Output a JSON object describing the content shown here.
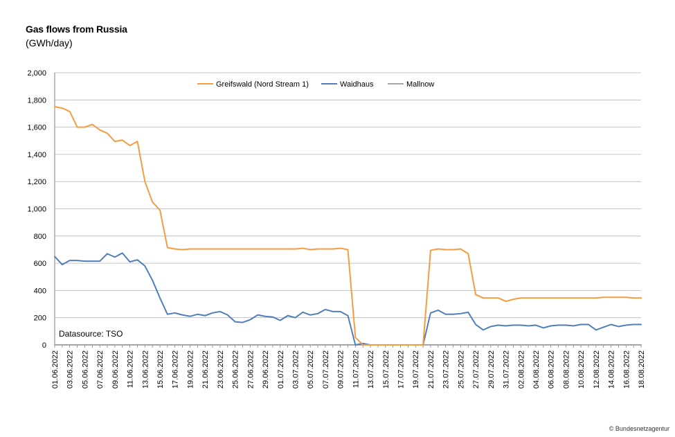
{
  "header": {
    "title": "Gas flows from Russia",
    "subtitle": "(GWh/day)"
  },
  "annotation": "Datasource: TSO",
  "credit": "© Bundesnetzagentur",
  "chart_data": {
    "type": "line",
    "ylim": [
      0,
      2000
    ],
    "yticks": [
      0,
      200,
      400,
      600,
      800,
      1000,
      1200,
      1400,
      1600,
      1800,
      2000
    ],
    "ytick_labels": [
      "0",
      "200",
      "400",
      "600",
      "800",
      "1,000",
      "1,200",
      "1,400",
      "1,600",
      "1,800",
      "2,000"
    ],
    "grid": "horizontal",
    "legend_position": "top-center",
    "x": [
      "01.06.2022",
      "02.06.2022",
      "03.06.2022",
      "04.06.2022",
      "05.06.2022",
      "06.06.2022",
      "07.06.2022",
      "08.06.2022",
      "09.06.2022",
      "10.06.2022",
      "11.06.2022",
      "12.06.2022",
      "13.06.2022",
      "14.06.2022",
      "15.06.2022",
      "16.06.2022",
      "17.06.2022",
      "18.06.2022",
      "19.06.2022",
      "20.06.2022",
      "21.06.2022",
      "22.06.2022",
      "23.06.2022",
      "24.06.2022",
      "25.06.2022",
      "26.06.2022",
      "27.06.2022",
      "28.06.2022",
      "29.06.2022",
      "30.06.2022",
      "01.07.2022",
      "02.07.2022",
      "03.07.2022",
      "04.07.2022",
      "05.07.2022",
      "06.07.2022",
      "07.07.2022",
      "08.07.2022",
      "09.07.2022",
      "10.07.2022",
      "11.07.2022",
      "12.07.2022",
      "13.07.2022",
      "14.07.2022",
      "15.07.2022",
      "16.07.2022",
      "17.07.2022",
      "18.07.2022",
      "19.07.2022",
      "20.07.2022",
      "21.07.2022",
      "22.07.2022",
      "23.07.2022",
      "24.07.2022",
      "25.07.2022",
      "26.07.2022",
      "27.07.2022",
      "28.07.2022",
      "29.07.2022",
      "30.07.2022",
      "31.07.2022",
      "01.08.2022",
      "02.08.2022",
      "03.08.2022",
      "04.08.2022",
      "05.08.2022",
      "06.08.2022",
      "07.08.2022",
      "08.08.2022",
      "09.08.2022",
      "10.08.2022",
      "11.08.2022",
      "12.08.2022",
      "13.08.2022",
      "14.08.2022",
      "15.08.2022",
      "16.08.2022",
      "17.08.2022",
      "18.08.2022"
    ],
    "x_tick_labels": [
      "01.06.2022",
      "03.06.2022",
      "05.06.2022",
      "07.06.2022",
      "09.06.2022",
      "11.06.2022",
      "13.06.2022",
      "15.06.2022",
      "17.06.2022",
      "19.06.2022",
      "21.06.2022",
      "23.06.2022",
      "25.06.2022",
      "27.06.2022",
      "29.06.2022",
      "01.07.2022",
      "03.07.2022",
      "05.07.2022",
      "07.07.2022",
      "09.07.2022",
      "11.07.2022",
      "13.07.2022",
      "15.07.2022",
      "17.07.2022",
      "19.07.2022",
      "21.07.2022",
      "23.07.2022",
      "25.07.2022",
      "27.07.2022",
      "29.07.2022",
      "31.07.2022",
      "02.08.2022",
      "04.08.2022",
      "06.08.2022",
      "08.08.2022",
      "10.08.2022",
      "12.08.2022",
      "14.08.2022",
      "16.08.2022",
      "18.08.2022"
    ],
    "series": [
      {
        "name": "Greifswald (Nord Stream 1)",
        "color": "#F79B3F",
        "values": [
          1750,
          1740,
          1715,
          1600,
          1600,
          1620,
          1580,
          1555,
          1495,
          1505,
          1465,
          1495,
          1200,
          1050,
          990,
          715,
          705,
          700,
          705,
          705,
          705,
          705,
          705,
          705,
          705,
          705,
          705,
          705,
          705,
          705,
          705,
          705,
          705,
          710,
          700,
          705,
          705,
          705,
          710,
          700,
          55,
          0,
          0,
          0,
          0,
          0,
          0,
          0,
          0,
          0,
          695,
          705,
          700,
          700,
          705,
          670,
          370,
          345,
          345,
          345,
          320,
          335,
          345,
          345,
          345,
          345,
          345,
          345,
          345,
          345,
          345,
          345,
          345,
          350,
          350,
          350,
          350,
          345,
          345
        ]
      },
      {
        "name": "Waidhaus",
        "color": "#4F7EBB",
        "values": [
          650,
          590,
          620,
          620,
          615,
          615,
          615,
          670,
          645,
          675,
          610,
          625,
          580,
          475,
          345,
          225,
          235,
          220,
          210,
          225,
          215,
          235,
          245,
          220,
          170,
          165,
          185,
          220,
          210,
          205,
          180,
          215,
          200,
          240,
          220,
          230,
          260,
          245,
          245,
          215,
          0,
          10,
          0,
          0,
          0,
          0,
          0,
          0,
          0,
          0,
          235,
          255,
          225,
          225,
          230,
          240,
          150,
          110,
          135,
          145,
          140,
          145,
          145,
          140,
          145,
          125,
          140,
          145,
          145,
          140,
          150,
          150,
          110,
          130,
          150,
          135,
          145,
          150,
          150
        ]
      },
      {
        "name": "Mallnow",
        "color": "#A5A5A5",
        "values": [
          0,
          0,
          0,
          0,
          0,
          0,
          0,
          0,
          0,
          0,
          0,
          0,
          0,
          0,
          0,
          0,
          0,
          0,
          0,
          0,
          0,
          0,
          0,
          0,
          0,
          0,
          0,
          0,
          0,
          0,
          0,
          0,
          0,
          0,
          0,
          0,
          0,
          0,
          0,
          0,
          0,
          0,
          0,
          0,
          0,
          0,
          0,
          0,
          0,
          0,
          0,
          0,
          0,
          0,
          0,
          0,
          0,
          0,
          0,
          0,
          0,
          0,
          0,
          0,
          0,
          0,
          0,
          0,
          0,
          0,
          0,
          0,
          0,
          0,
          0,
          0,
          0,
          0,
          0
        ]
      }
    ]
  }
}
